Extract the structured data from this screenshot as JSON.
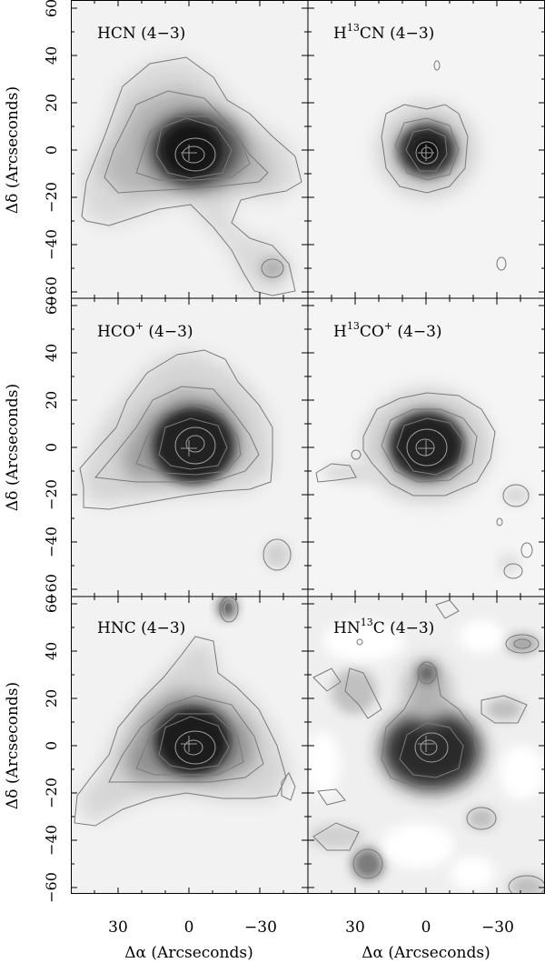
{
  "figure": {
    "x_axis_label": "Δα (Arcseconds)",
    "y_axis_label": "Δδ (Arcseconds)",
    "x_ticks": [
      "30",
      "0",
      "−30"
    ],
    "y_ticks": [
      "60",
      "40",
      "20",
      "0",
      "−20",
      "−40",
      "−60"
    ],
    "panels": [
      {
        "id": "hcn",
        "label": {
          "pre": "HCN",
          "sup": "",
          "mid": "",
          "sup2": "",
          "post": " (4−3)"
        }
      },
      {
        "id": "h13cn",
        "label": {
          "pre": "H",
          "sup": "13",
          "mid": "CN",
          "sup2": "",
          "post": " (4−3)"
        }
      },
      {
        "id": "hcop",
        "label": {
          "pre": "HCO",
          "sup": "+",
          "mid": "",
          "sup2": "",
          "post": " (4−3)"
        }
      },
      {
        "id": "h13cop",
        "label": {
          "pre": "H",
          "sup": "13",
          "mid": "CO",
          "sup2": "+",
          "post": " (4−3)"
        }
      },
      {
        "id": "hnc",
        "label": {
          "pre": "HNC",
          "sup": "",
          "mid": "",
          "sup2": "",
          "post": " (4−3)"
        }
      },
      {
        "id": "hn13c",
        "label": {
          "pre": "HN",
          "sup": "13",
          "mid": "C",
          "sup2": "",
          "post": " (4−3)"
        }
      }
    ]
  },
  "colors": {
    "frame": "#000000",
    "contour": "#7a7a7a",
    "inner_contour": "#9a9a9a",
    "cross": "#9a9a9a"
  }
}
